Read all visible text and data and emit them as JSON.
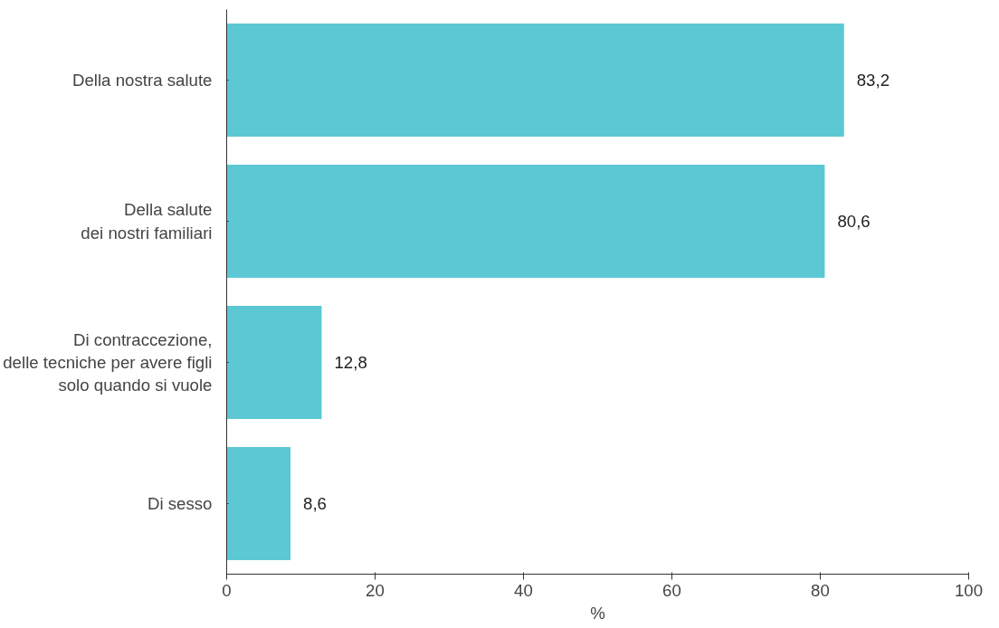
{
  "chart_data": {
    "type": "bar",
    "orientation": "horizontal",
    "categories": [
      "Della nostra salute",
      "Della salute\ndei nostri familiari",
      "Di contraccezione,\ndelle tecniche per avere figli\nsolo quando si vuole",
      "Di sesso"
    ],
    "values": [
      83.2,
      80.6,
      12.8,
      8.6
    ],
    "value_labels": [
      "83,2",
      "80,6",
      "12,8",
      "8,6"
    ],
    "color": "#5bc8d3",
    "xlim": [
      0,
      100
    ],
    "xticks": [
      0,
      20,
      40,
      60,
      80,
      100
    ],
    "xlabel": "%",
    "grid": false
  }
}
